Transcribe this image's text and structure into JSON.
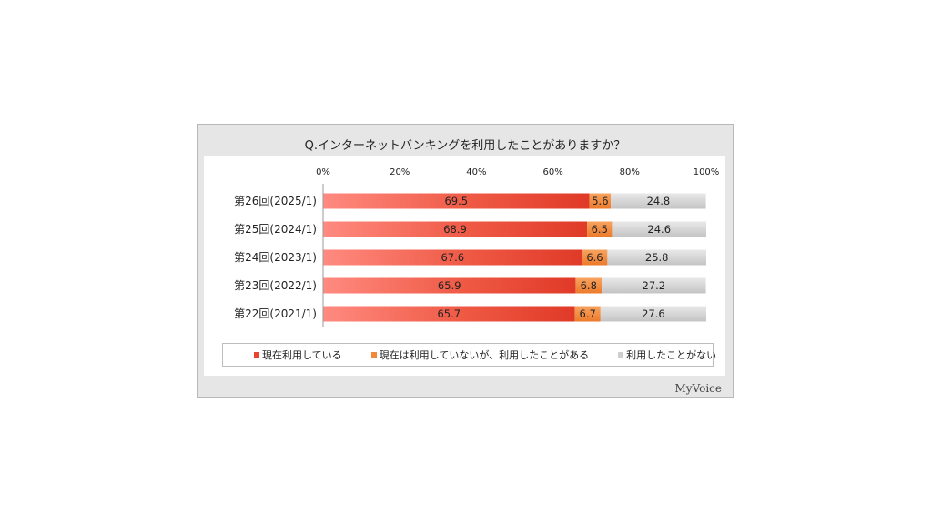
{
  "chart_data": {
    "type": "bar",
    "orientation": "horizontal",
    "stacked": "percent",
    "title": "Q.インターネットバンキングを利用したことがありますか？",
    "categories": [
      "第26回(2025/1)",
      "第25回(2024/1)",
      "第24回(2023/1)",
      "第23回(2022/1)",
      "第22回(2021/1)"
    ],
    "series": [
      {
        "name": "現在利用している",
        "values": [
          69.5,
          68.9,
          67.6,
          65.9,
          65.7
        ],
        "color": "#e8442f"
      },
      {
        "name": "現在は利用していないが、利用したことがある",
        "values": [
          5.6,
          6.5,
          6.6,
          6.8,
          6.7
        ],
        "color": "#f08a3a"
      },
      {
        "name": "利用したことがない",
        "values": [
          24.8,
          24.6,
          25.8,
          27.2,
          27.6
        ],
        "color": "#cfcfcf"
      }
    ],
    "x_ticks": [
      "0%",
      "20%",
      "40%",
      "60%",
      "80%",
      "100%"
    ],
    "xlim": [
      0,
      100
    ],
    "legend_position": "bottom"
  },
  "brand": "MyVoice"
}
